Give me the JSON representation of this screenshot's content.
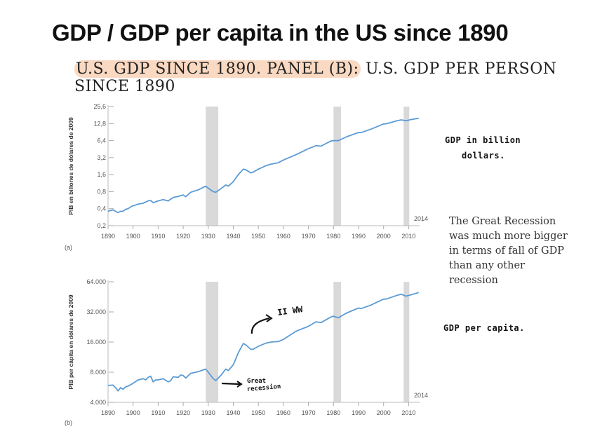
{
  "slide": {
    "title": "GDP / GDP per capita in the US since 1890",
    "caption_highlight": "U.S. GDP SINCE 1890. PANEL (B):",
    "caption_rest": " U.S. GDP PER PERSON SINCE 1890",
    "highlight_color": "#f9d9c2"
  },
  "notes": {
    "handwritten_gdp_line1": "GDP in billion",
    "handwritten_gdp_line2": "dollars.",
    "serif_note": "The Great Recession was much more bigger in terms of fall of GDP than any other recession",
    "handwritten_per_capita": "GDP per capita."
  },
  "chart_data": [
    {
      "type": "line",
      "panel_label": "(a)",
      "title": "",
      "xlabel": "",
      "ylabel": "PIB en billones de dólares de 2009",
      "yscale": "log2",
      "ylim": [
        0.2,
        25.6
      ],
      "xlim": [
        1890,
        2014
      ],
      "y_ticks": [
        0.2,
        0.4,
        0.8,
        1.6,
        3.2,
        6.4,
        12.8,
        25.6
      ],
      "y_tick_labels": [
        "0,2",
        "0,4",
        "0,8",
        "1,6",
        "3,2",
        "6,4",
        "12,8",
        "25,6"
      ],
      "x_ticks": [
        1890,
        1900,
        1910,
        1920,
        1930,
        1940,
        1950,
        1960,
        1970,
        1980,
        1990,
        2000,
        2010
      ],
      "x_tick_labels": [
        "1890",
        "1900",
        "1910",
        "1920",
        "1930",
        "1940",
        "1950",
        "1960",
        "1970",
        "1980",
        "1990",
        "2000",
        "2010"
      ],
      "end_label": "2014",
      "line_color": "#5b9bd5",
      "recessions": [
        [
          1929,
          1933
        ],
        [
          1980,
          1982
        ],
        [
          2008,
          2009
        ]
      ],
      "recession_color": "#d9d9d9",
      "series": [
        {
          "name": "GDP",
          "x": [
            1890,
            1891,
            1892,
            1893,
            1894,
            1895,
            1896,
            1897,
            1898,
            1899,
            1900,
            1902,
            1904,
            1906,
            1907,
            1908,
            1910,
            1912,
            1914,
            1916,
            1918,
            1920,
            1921,
            1923,
            1926,
            1929,
            1930,
            1932,
            1933,
            1935,
            1937,
            1938,
            1940,
            1942,
            1944,
            1945,
            1947,
            1948,
            1950,
            1953,
            1955,
            1958,
            1960,
            1965,
            1970,
            1973,
            1975,
            1979,
            1980,
            1982,
            1985,
            1990,
            1991,
            1995,
            2000,
            2001,
            2005,
            2007,
            2009,
            2011,
            2014
          ],
          "y": [
            0.36,
            0.37,
            0.38,
            0.36,
            0.34,
            0.36,
            0.36,
            0.39,
            0.4,
            0.43,
            0.45,
            0.48,
            0.5,
            0.55,
            0.56,
            0.51,
            0.55,
            0.58,
            0.55,
            0.63,
            0.66,
            0.7,
            0.65,
            0.78,
            0.86,
            1.0,
            0.92,
            0.8,
            0.78,
            0.9,
            1.05,
            1.0,
            1.2,
            1.6,
            2.0,
            1.95,
            1.72,
            1.78,
            2.0,
            2.3,
            2.45,
            2.6,
            2.9,
            3.6,
            4.6,
            5.2,
            5.1,
            6.3,
            6.4,
            6.4,
            7.4,
            8.9,
            8.85,
            10.2,
            12.6,
            12.7,
            14.2,
            14.9,
            14.4,
            15.1,
            15.9
          ]
        }
      ]
    },
    {
      "type": "line",
      "panel_label": "(b)",
      "title": "",
      "xlabel": "",
      "ylabel": "PIB per cápita en dólares de 2009",
      "yscale": "log2",
      "ylim": [
        4000,
        64000
      ],
      "xlim": [
        1890,
        2014
      ],
      "y_ticks": [
        4000,
        8000,
        16000,
        32000,
        64000
      ],
      "y_tick_labels": [
        "4.000",
        "8.000",
        "16.000",
        "32.000",
        "64.000"
      ],
      "x_ticks": [
        1890,
        1900,
        1910,
        1920,
        1930,
        1940,
        1950,
        1960,
        1970,
        1980,
        1990,
        2000,
        2010
      ],
      "x_tick_labels": [
        "1890",
        "1900",
        "1910",
        "1920",
        "1930",
        "1940",
        "1950",
        "1960",
        "1970",
        "1980",
        "1990",
        "2000",
        "2010"
      ],
      "end_label": "2014",
      "line_color": "#5b9bd5",
      "recessions": [
        [
          1929,
          1933
        ],
        [
          1980,
          1982
        ],
        [
          2008,
          2009
        ]
      ],
      "recession_color": "#d9d9d9",
      "annotations": [
        {
          "text": "II WW",
          "year": 1944
        },
        {
          "text_line1": "Great",
          "text_line2": "recession",
          "year": 1933
        }
      ],
      "series": [
        {
          "name": "GDP per capita",
          "x": [
            1890,
            1892,
            1893,
            1894,
            1895,
            1896,
            1897,
            1898,
            1900,
            1902,
            1904,
            1905,
            1906,
            1907,
            1908,
            1909,
            1910,
            1912,
            1914,
            1915,
            1916,
            1918,
            1919,
            1920,
            1921,
            1923,
            1926,
            1929,
            1930,
            1932,
            1933,
            1935,
            1937,
            1938,
            1940,
            1942,
            1944,
            1945,
            1947,
            1948,
            1950,
            1953,
            1955,
            1958,
            1960,
            1965,
            1970,
            1973,
            1975,
            1979,
            1980,
            1982,
            1985,
            1990,
            1991,
            1995,
            2000,
            2001,
            2005,
            2007,
            2009,
            2011,
            2014
          ],
          "y": [
            5900,
            5950,
            5600,
            5200,
            5600,
            5400,
            5700,
            5800,
            6200,
            6700,
            6900,
            6700,
            7100,
            7300,
            6400,
            6700,
            6700,
            6900,
            6400,
            6600,
            7200,
            7100,
            7500,
            7400,
            7000,
            7800,
            8100,
            8600,
            8000,
            6900,
            6600,
            7400,
            8600,
            8300,
            9500,
            12500,
            15500,
            15000,
            13500,
            13600,
            14500,
            15600,
            16000,
            16200,
            17000,
            20500,
            23000,
            25500,
            25000,
            28500,
            29000,
            28000,
            31000,
            35000,
            34500,
            37500,
            43000,
            43000,
            46500,
            48000,
            46000,
            47500,
            50000
          ]
        }
      ]
    }
  ]
}
